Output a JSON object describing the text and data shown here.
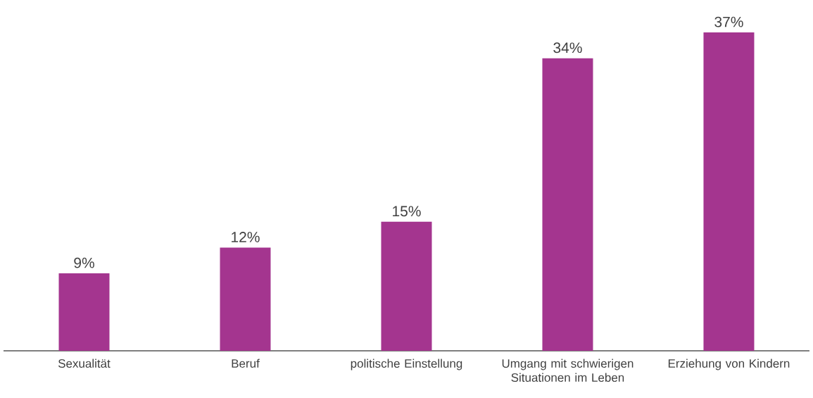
{
  "chart_data": {
    "type": "bar",
    "categories": [
      "Sexualität",
      "Beruf",
      "politische Einstellung",
      "Umgang mit schwierigen Situationen im Leben",
      "Erziehung von Kindern"
    ],
    "values": [
      9,
      12,
      15,
      34,
      37
    ],
    "value_labels": [
      "9%",
      "12%",
      "15%",
      "34%",
      "37%"
    ],
    "color": "#a4358f"
  }
}
